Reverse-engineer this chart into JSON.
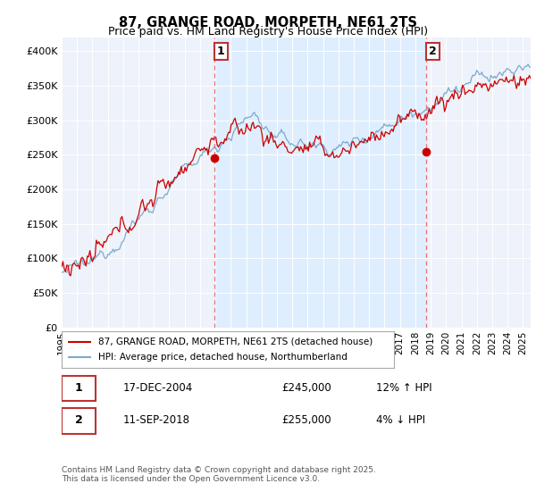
{
  "title": "87, GRANGE ROAD, MORPETH, NE61 2TS",
  "subtitle": "Price paid vs. HM Land Registry's House Price Index (HPI)",
  "ylabel_ticks": [
    "£0",
    "£50K",
    "£100K",
    "£150K",
    "£200K",
    "£250K",
    "£300K",
    "£350K",
    "£400K"
  ],
  "ytick_values": [
    0,
    50000,
    100000,
    150000,
    200000,
    250000,
    300000,
    350000,
    400000
  ],
  "ylim": [
    0,
    420000
  ],
  "xlim_start": 1995.0,
  "xlim_end": 2025.5,
  "xticks": [
    1995,
    1996,
    1997,
    1998,
    1999,
    2000,
    2001,
    2002,
    2003,
    2004,
    2005,
    2006,
    2007,
    2008,
    2009,
    2010,
    2011,
    2012,
    2013,
    2014,
    2015,
    2016,
    2017,
    2018,
    2019,
    2020,
    2021,
    2022,
    2023,
    2024,
    2025
  ],
  "red_line_color": "#cc0000",
  "blue_line_color": "#7aabcf",
  "vline_color": "#e87070",
  "shade_color": "#ddeeff",
  "marker1_x": 2004.96,
  "marker1_y": 245000,
  "marker2_x": 2018.71,
  "marker2_y": 255000,
  "marker1_date": "17-DEC-2004",
  "marker1_price": "£245,000",
  "marker1_hpi": "12% ↑ HPI",
  "marker2_date": "11-SEP-2018",
  "marker2_price": "£255,000",
  "marker2_hpi": "4% ↓ HPI",
  "legend_line1": "87, GRANGE ROAD, MORPETH, NE61 2TS (detached house)",
  "legend_line2": "HPI: Average price, detached house, Northumberland",
  "footer": "Contains HM Land Registry data © Crown copyright and database right 2025.\nThis data is licensed under the Open Government Licence v3.0.",
  "background_color": "#eef2fa",
  "fig_bg_color": "#ffffff"
}
